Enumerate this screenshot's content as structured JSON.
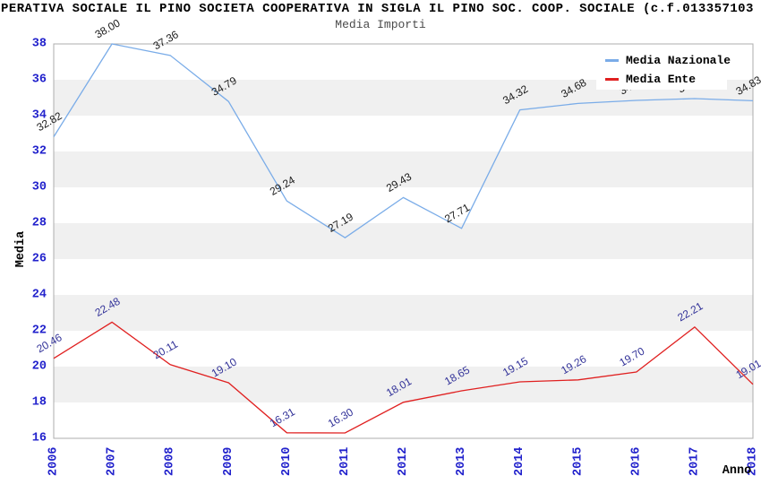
{
  "header": {
    "title": "PERATIVA SOCIALE IL PINO SOCIETA COOPERATIVA IN SIGLA IL PINO SOC. COOP. SOCIALE (c.f.013357103",
    "subtitle": "Media Importi"
  },
  "legend": {
    "items": [
      {
        "label": "Media Nazionale",
        "color": "#7aace8"
      },
      {
        "label": "Media Ente",
        "color": "#e02020"
      }
    ]
  },
  "chart_data": {
    "type": "line",
    "title": "Media Importi",
    "x": [
      2006,
      2007,
      2008,
      2009,
      2010,
      2011,
      2012,
      2013,
      2014,
      2015,
      2016,
      2017,
      2018
    ],
    "series": [
      {
        "name": "Media Nazionale",
        "color": "#7aace8",
        "label_color": "#1a1a1a",
        "values": [
          32.82,
          38.0,
          37.36,
          34.79,
          29.24,
          27.19,
          29.43,
          27.71,
          34.32,
          34.68,
          34.85,
          34.95,
          34.83
        ]
      },
      {
        "name": "Media Ente",
        "color": "#e02020",
        "label_color": "#333399",
        "values": [
          20.46,
          22.48,
          20.11,
          19.1,
          16.31,
          16.3,
          18.01,
          18.65,
          19.15,
          19.26,
          19.7,
          22.21,
          19.01
        ]
      }
    ],
    "xlabel": "Anno",
    "ylabel": "Media",
    "ylim": [
      16,
      38
    ],
    "ytick_step": 2,
    "grid": "alternating-bands",
    "legend_position": "top-right",
    "colors": {
      "tick_label": "#2222cc",
      "band_gray": "#f0f0f0",
      "band_white": "#ffffff",
      "plot_border": "#adadad"
    }
  }
}
